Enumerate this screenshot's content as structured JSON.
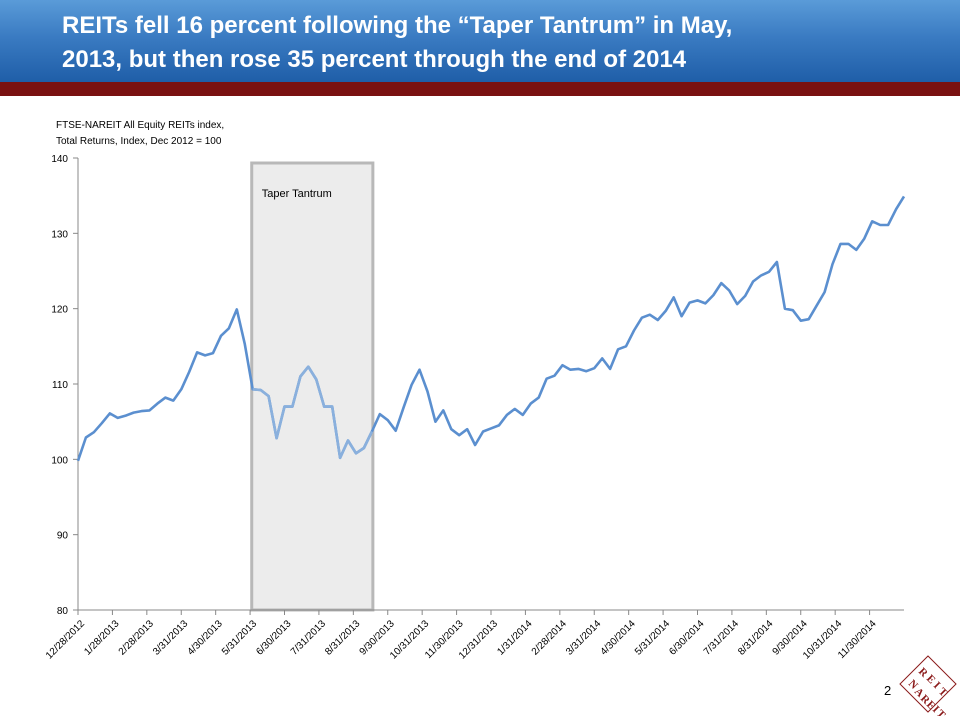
{
  "slide": {
    "title_line1": "REITs fell 16 percent following the “Taper Tantrum” in May,",
    "title_line2": "2013, but then rose 35 percent through the end of 2014",
    "page_number": "2",
    "logo_text": "REIT NAREIT",
    "colors": {
      "title_bar": "#3a7bc2",
      "accent_bar": "#7a1111",
      "series": "#5b8fcf",
      "shade_series": "#8ab0dd"
    }
  },
  "chart_data": {
    "type": "line",
    "note_line1": "FTSE-NAREIT  All Equity REITs index,",
    "note_line2": "Total Returns,  Index, Dec 2012 = 100",
    "ylim": [
      80,
      140
    ],
    "yticks": [
      80,
      90,
      100,
      110,
      120,
      130,
      140
    ],
    "grid": false,
    "xticks": [
      "12/28/2012",
      "1/28/2013",
      "2/28/2013",
      "3/31/2013",
      "4/30/2013",
      "5/31/2013",
      "6/30/2013",
      "7/31/2013",
      "8/31/2013",
      "9/30/2013",
      "10/31/2013",
      "11/30/2013",
      "12/31/2013",
      "1/31/2014",
      "2/28/2014",
      "3/31/2014",
      "4/30/2014",
      "5/31/2014",
      "6/30/2014",
      "7/31/2014",
      "8/31/2014",
      "9/30/2014",
      "10/31/2014",
      "11/30/2014"
    ],
    "shaded_period": {
      "label": "Taper Tantrum",
      "start_week": 22,
      "end_week": 37
    },
    "series": [
      {
        "values": [
          99.8,
          102.9,
          103.6,
          104.8,
          106.1,
          105.5,
          105.8,
          106.2,
          106.4,
          106.5,
          107.4,
          108.2,
          107.8,
          109.3,
          111.6,
          114.2,
          113.8,
          114.1,
          116.4,
          117.4,
          119.9,
          115.3,
          109.3,
          109.2,
          108.4,
          102.8,
          107.0,
          107.0,
          111.0,
          112.3,
          110.6,
          107.0,
          107.0,
          100.2,
          102.5,
          100.8,
          101.5,
          103.7,
          106.0,
          105.2,
          103.8,
          106.9,
          109.9,
          111.9,
          109.0,
          105.0,
          106.5,
          104.0,
          103.2,
          104.0,
          101.9,
          103.7,
          104.1,
          104.5,
          105.9,
          106.7,
          105.9,
          107.4,
          108.2,
          110.7,
          111.1,
          112.5,
          111.9,
          112.0,
          111.7,
          112.1,
          113.4,
          112.0,
          114.6,
          115.0,
          117.1,
          118.8,
          119.2,
          118.5,
          119.7,
          121.5,
          119.0,
          120.8,
          121.1,
          120.7,
          121.8,
          123.4,
          122.4,
          120.6,
          121.7,
          123.6,
          124.4,
          124.9,
          126.2,
          120.0,
          119.8,
          118.4,
          118.6,
          120.4,
          122.2,
          125.9,
          128.6,
          128.6,
          127.8,
          129.3,
          131.6,
          131.1,
          131.1,
          133.2,
          134.9
        ]
      }
    ]
  }
}
